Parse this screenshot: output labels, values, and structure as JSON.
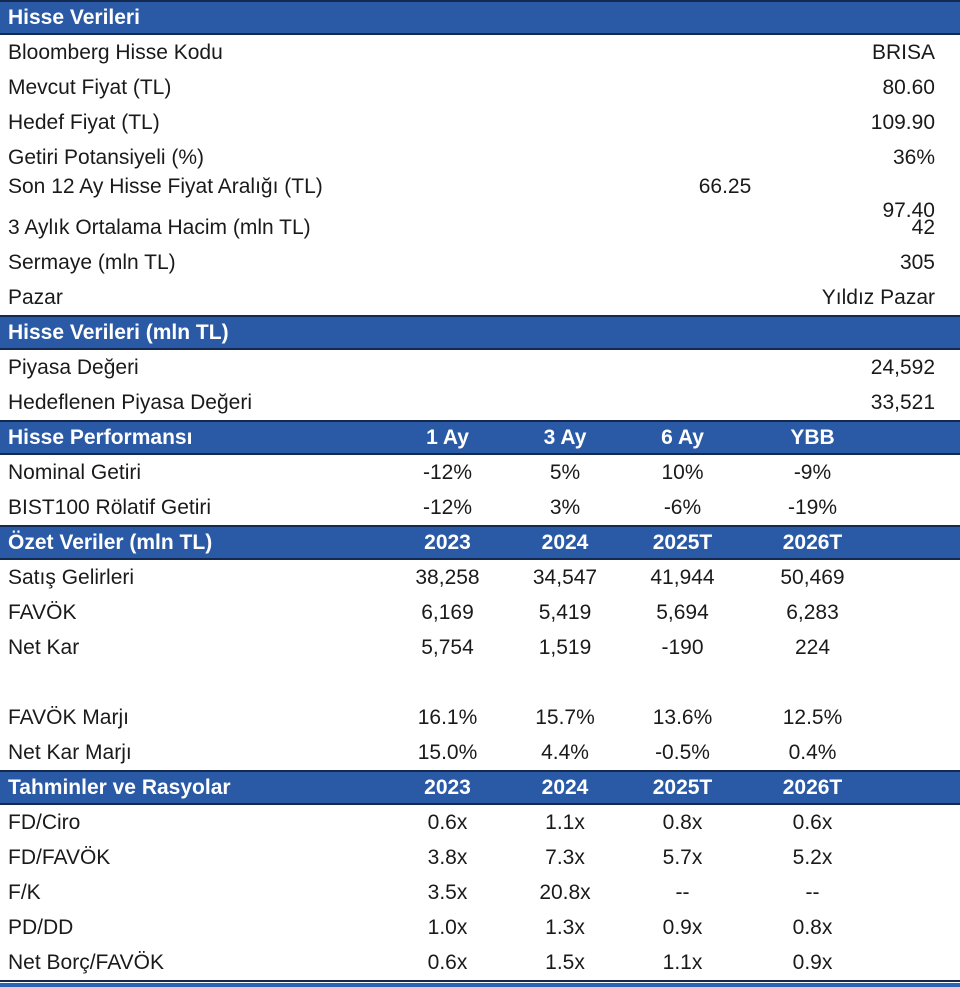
{
  "theme": {
    "header_bg": "#2a5aa6",
    "header_border": "#13294f",
    "header_text": "#ffffff",
    "body_text": "#1a1a1a",
    "bottom_rule_blue": "#2a64b4"
  },
  "sections": [
    {
      "title": "Hisse Verileri",
      "rows": [
        {
          "label": "Bloomberg Hisse Kodu",
          "value": "BRISA"
        },
        {
          "label": "Mevcut Fiyat (TL)",
          "value": "80.60"
        },
        {
          "label": "Hedef Fiyat (TL)",
          "value": "109.90"
        },
        {
          "label": "Getiri Potansiyeli (%)",
          "value": "36%"
        },
        {
          "label": "Son 12 Ay Hisse Fiyat Aralığı (TL)",
          "low": "66.25",
          "value": "97.40"
        },
        {
          "label": "3 Aylık Ortalama Hacim (mln TL)",
          "value": "42"
        },
        {
          "label": "Sermaye (mln TL)",
          "value": "305"
        },
        {
          "label": "Pazar",
          "value": "Yıldız Pazar"
        }
      ]
    },
    {
      "title": "Hisse Verileri (mln TL)",
      "rows": [
        {
          "label": "Piyasa Değeri",
          "value": "24,592"
        },
        {
          "label": "Hedeflenen Piyasa Değeri",
          "value": "33,521"
        }
      ]
    },
    {
      "title": "Hisse Performansı",
      "columns": [
        "1 Ay",
        "3 Ay",
        "6 Ay",
        "YBB"
      ],
      "rows": [
        {
          "label": "Nominal Getiri",
          "values": [
            "-12%",
            "5%",
            "10%",
            "-9%"
          ]
        },
        {
          "label": "BIST100 Rölatif Getiri",
          "values": [
            "-12%",
            "3%",
            "-6%",
            "-19%"
          ]
        }
      ]
    },
    {
      "title": "Özet Veriler (mln TL)",
      "columns": [
        "2023",
        "2024",
        "2025T",
        "2026T"
      ],
      "rows": [
        {
          "label": "Satış Gelirleri",
          "values": [
            "38,258",
            "34,547",
            "41,944",
            "50,469"
          ]
        },
        {
          "label": "FAVÖK",
          "values": [
            "6,169",
            "5,419",
            "5,694",
            "6,283"
          ]
        },
        {
          "label": "Net Kar",
          "values": [
            "5,754",
            "1,519",
            "-190",
            "224"
          ]
        },
        {
          "label": "",
          "values": [
            "",
            "",
            "",
            ""
          ]
        },
        {
          "label": "FAVÖK Marjı",
          "values": [
            "16.1%",
            "15.7%",
            "13.6%",
            "12.5%"
          ]
        },
        {
          "label": "Net Kar Marjı",
          "values": [
            "15.0%",
            "4.4%",
            "-0.5%",
            "0.4%"
          ]
        }
      ]
    },
    {
      "title": "Tahminler ve Rasyolar",
      "columns": [
        "2023",
        "2024",
        "2025T",
        "2026T"
      ],
      "rows": [
        {
          "label": "FD/Ciro",
          "values": [
            "0.6x",
            "1.1x",
            "0.8x",
            "0.6x"
          ]
        },
        {
          "label": "FD/FAVÖK",
          "values": [
            "3.8x",
            "7.3x",
            "5.7x",
            "5.2x"
          ]
        },
        {
          "label": "F/K",
          "values": [
            "3.5x",
            "20.8x",
            "--",
            "--"
          ]
        },
        {
          "label": "PD/DD",
          "values": [
            "1.0x",
            "1.3x",
            "0.9x",
            "0.8x"
          ]
        },
        {
          "label": "Net Borç/FAVÖK",
          "values": [
            "0.6x",
            "1.5x",
            "1.1x",
            "0.9x"
          ]
        }
      ]
    }
  ]
}
